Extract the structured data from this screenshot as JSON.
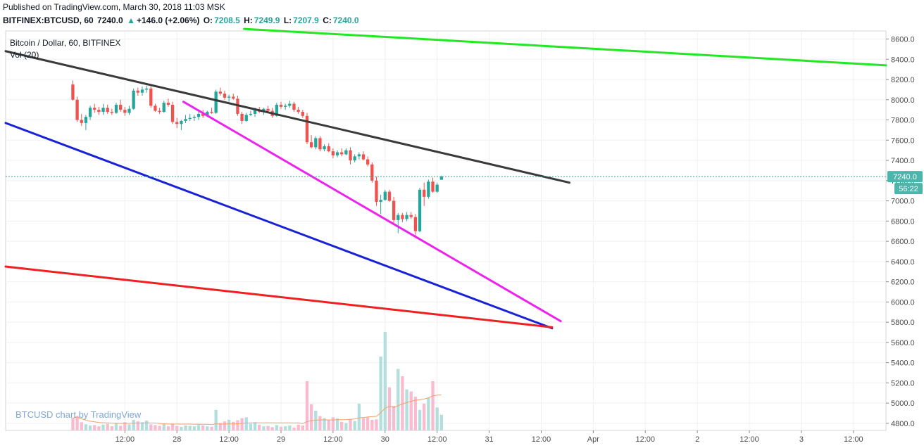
{
  "header": {
    "published": "Published on TradingView.com, March 30, 2018 11:03 MSK",
    "symbol": "BITFINEX:BTCUSD, 60",
    "last": "7240.0",
    "change": "+146.0 (+2.06%)",
    "o_label": "O:",
    "o_value": "7208.5",
    "h_label": "H:",
    "h_value": "7249.9",
    "l_label": "L:",
    "l_value": "7207.9",
    "c_label": "C:",
    "c_value": "7240.0"
  },
  "chart_title": "Bitcoin / Dollar, 60, BITFINEX",
  "volume_label": "Vol (20)",
  "watermark": "BTCUSD chart by TradingView",
  "price_tag": "7240.0",
  "countdown_tag": "56:22",
  "colors": {
    "up": "#26a69a",
    "down": "#ef5350",
    "up_vol": "#b2dfdb",
    "down_vol": "#f8bbd0",
    "trend_black": "#3a3a3a",
    "trend_green": "#22e822",
    "trend_magenta": "#ee22ee",
    "trend_blue": "#1a22d8",
    "trend_red": "#ee2020",
    "vol_ma": "#f4a06c"
  },
  "chart_data": {
    "type": "candlestick",
    "title": "Bitcoin / Dollar, 60, BITFINEX",
    "y_ticks": [
      4800,
      5000,
      5200,
      5400,
      5600,
      5800,
      6000,
      6200,
      6400,
      6600,
      6800,
      7000,
      7200,
      7400,
      7600,
      7800,
      8000,
      8200,
      8400,
      8600
    ],
    "x_tick_labels": [
      "12:00",
      "28",
      "12:00",
      "29",
      "12:00",
      "30",
      "12:00",
      "31",
      "12:00",
      "Apr",
      "12:00",
      "2",
      "12:00",
      "3",
      "12:00"
    ],
    "ylim": [
      4730,
      8680
    ],
    "x_units": "hours from 2018-03-27 00:00",
    "xlim": [
      -15.5,
      187.5
    ],
    "last_price": 7240.0,
    "candles": [
      [
        8150,
        8190,
        7990,
        8000
      ],
      [
        8000,
        8030,
        7780,
        7800
      ],
      [
        7800,
        7860,
        7740,
        7770
      ],
      [
        7770,
        7850,
        7700,
        7830
      ],
      [
        7830,
        7940,
        7800,
        7920
      ],
      [
        7920,
        7960,
        7870,
        7900
      ],
      [
        7900,
        7930,
        7850,
        7880
      ],
      [
        7880,
        7960,
        7850,
        7920
      ],
      [
        7920,
        7950,
        7860,
        7880
      ],
      [
        7880,
        7910,
        7850,
        7870
      ],
      [
        7870,
        7970,
        7860,
        7950
      ],
      [
        7950,
        8000,
        7880,
        7900
      ],
      [
        7900,
        7930,
        7840,
        7870
      ],
      [
        7870,
        7940,
        7850,
        7910
      ],
      [
        7910,
        8110,
        7900,
        8090
      ],
      [
        8090,
        8120,
        8040,
        8070
      ],
      [
        8070,
        8130,
        8040,
        8100
      ],
      [
        8100,
        8140,
        8070,
        8110
      ],
      [
        8110,
        8130,
        7920,
        7940
      ],
      [
        7940,
        7960,
        7880,
        7890
      ],
      [
        7890,
        7920,
        7860,
        7880
      ],
      [
        7880,
        7990,
        7870,
        7970
      ],
      [
        7970,
        8010,
        7930,
        7950
      ],
      [
        7950,
        7980,
        7760,
        7780
      ],
      [
        7780,
        7820,
        7720,
        7760
      ],
      [
        7760,
        7800,
        7700,
        7790
      ],
      [
        7790,
        7850,
        7770,
        7810
      ],
      [
        7810,
        7860,
        7790,
        7820
      ],
      [
        7820,
        7850,
        7790,
        7830
      ],
      [
        7830,
        7880,
        7800,
        7860
      ],
      [
        7860,
        7900,
        7820,
        7840
      ],
      [
        7840,
        7890,
        7830,
        7880
      ],
      [
        7880,
        7920,
        7860,
        7870
      ],
      [
        7870,
        8100,
        7860,
        8080
      ],
      [
        8080,
        8120,
        8040,
        8060
      ],
      [
        8060,
        8090,
        8000,
        8020
      ],
      [
        8020,
        8050,
        7980,
        8030
      ],
      [
        8030,
        8060,
        8000,
        8010
      ],
      [
        8010,
        8040,
        7840,
        7860
      ],
      [
        7860,
        7880,
        7760,
        7790
      ],
      [
        7790,
        7870,
        7780,
        7850
      ],
      [
        7850,
        7890,
        7840,
        7860
      ],
      [
        7860,
        7920,
        7830,
        7900
      ],
      [
        7900,
        7930,
        7870,
        7880
      ],
      [
        7880,
        7920,
        7850,
        7910
      ],
      [
        7910,
        7940,
        7880,
        7890
      ],
      [
        7890,
        7920,
        7820,
        7840
      ],
      [
        7840,
        7970,
        7830,
        7950
      ],
      [
        7950,
        7980,
        7910,
        7930
      ],
      [
        7930,
        7960,
        7900,
        7940
      ],
      [
        7940,
        7990,
        7920,
        7960
      ],
      [
        7960,
        7980,
        7880,
        7900
      ],
      [
        7900,
        7930,
        7860,
        7880
      ],
      [
        7880,
        7900,
        7820,
        7840
      ],
      [
        7840,
        7870,
        7560,
        7580
      ],
      [
        7580,
        7650,
        7520,
        7530
      ],
      [
        7530,
        7640,
        7510,
        7620
      ],
      [
        7620,
        7640,
        7490,
        7510
      ],
      [
        7510,
        7560,
        7490,
        7540
      ],
      [
        7540,
        7570,
        7480,
        7490
      ],
      [
        7490,
        7520,
        7420,
        7450
      ],
      [
        7450,
        7500,
        7430,
        7480
      ],
      [
        7480,
        7520,
        7440,
        7460
      ],
      [
        7460,
        7520,
        7450,
        7500
      ],
      [
        7500,
        7530,
        7360,
        7400
      ],
      [
        7400,
        7460,
        7380,
        7440
      ],
      [
        7440,
        7480,
        7410,
        7460
      ],
      [
        7460,
        7490,
        7400,
        7410
      ],
      [
        7410,
        7440,
        7340,
        7360
      ],
      [
        7360,
        7380,
        7180,
        7200
      ],
      [
        7200,
        7240,
        6950,
        6990
      ],
      [
        6990,
        7060,
        6870,
        7010
      ],
      [
        7010,
        7110,
        7000,
        7090
      ],
      [
        7090,
        7110,
        6990,
        7000
      ],
      [
        7000,
        7040,
        6780,
        6810
      ],
      [
        6810,
        6880,
        6680,
        6860
      ],
      [
        6860,
        6880,
        6790,
        6820
      ],
      [
        6820,
        6890,
        6800,
        6860
      ],
      [
        6860,
        6890,
        6820,
        6840
      ],
      [
        6840,
        6870,
        6640,
        6700
      ],
      [
        6700,
        7130,
        6690,
        7110
      ],
      [
        7110,
        7180,
        6950,
        7040
      ],
      [
        7040,
        7210,
        7020,
        7190
      ],
      [
        7190,
        7230,
        7080,
        7090
      ],
      [
        7090,
        7180,
        7080,
        7160
      ],
      [
        7208.5,
        7249.9,
        7207.9,
        7240.0
      ]
    ],
    "volume": [
      300,
      350,
      200,
      150,
      120,
      130,
      100,
      140,
      160,
      100,
      180,
      110,
      200,
      150,
      260,
      220,
      200,
      240,
      150,
      130,
      110,
      170,
      100,
      160,
      110,
      90,
      120,
      110,
      100,
      130,
      120,
      100,
      90,
      500,
      180,
      220,
      260,
      210,
      250,
      300,
      320,
      160,
      200,
      140,
      100,
      110,
      80,
      130,
      90,
      100,
      120,
      70,
      140,
      120,
      1200,
      640,
      480,
      350,
      300,
      260,
      320,
      290,
      210,
      180,
      270,
      230,
      650,
      300,
      320,
      260,
      270,
      1800,
      2400,
      1050,
      600,
      1500,
      1320,
      1000,
      950,
      820,
      500,
      650,
      800,
      1200,
      560,
      380
    ],
    "trendlines": [
      {
        "color": "trend_black",
        "start": [
          -15.5,
          8480
        ],
        "end": [
          114.5,
          7180
        ]
      },
      {
        "color": "trend_green",
        "start": [
          39.5,
          8700
        ],
        "end": [
          187.5,
          8340
        ]
      },
      {
        "color": "trend_magenta",
        "start": [
          25.5,
          7980
        ],
        "end": [
          112.5,
          5810
        ]
      },
      {
        "color": "trend_blue",
        "start": [
          -15.5,
          7770
        ],
        "end": [
          110.5,
          5740
        ]
      },
      {
        "color": "trend_red",
        "start": [
          -15.5,
          6350
        ],
        "end": [
          110.5,
          5750
        ]
      }
    ]
  }
}
